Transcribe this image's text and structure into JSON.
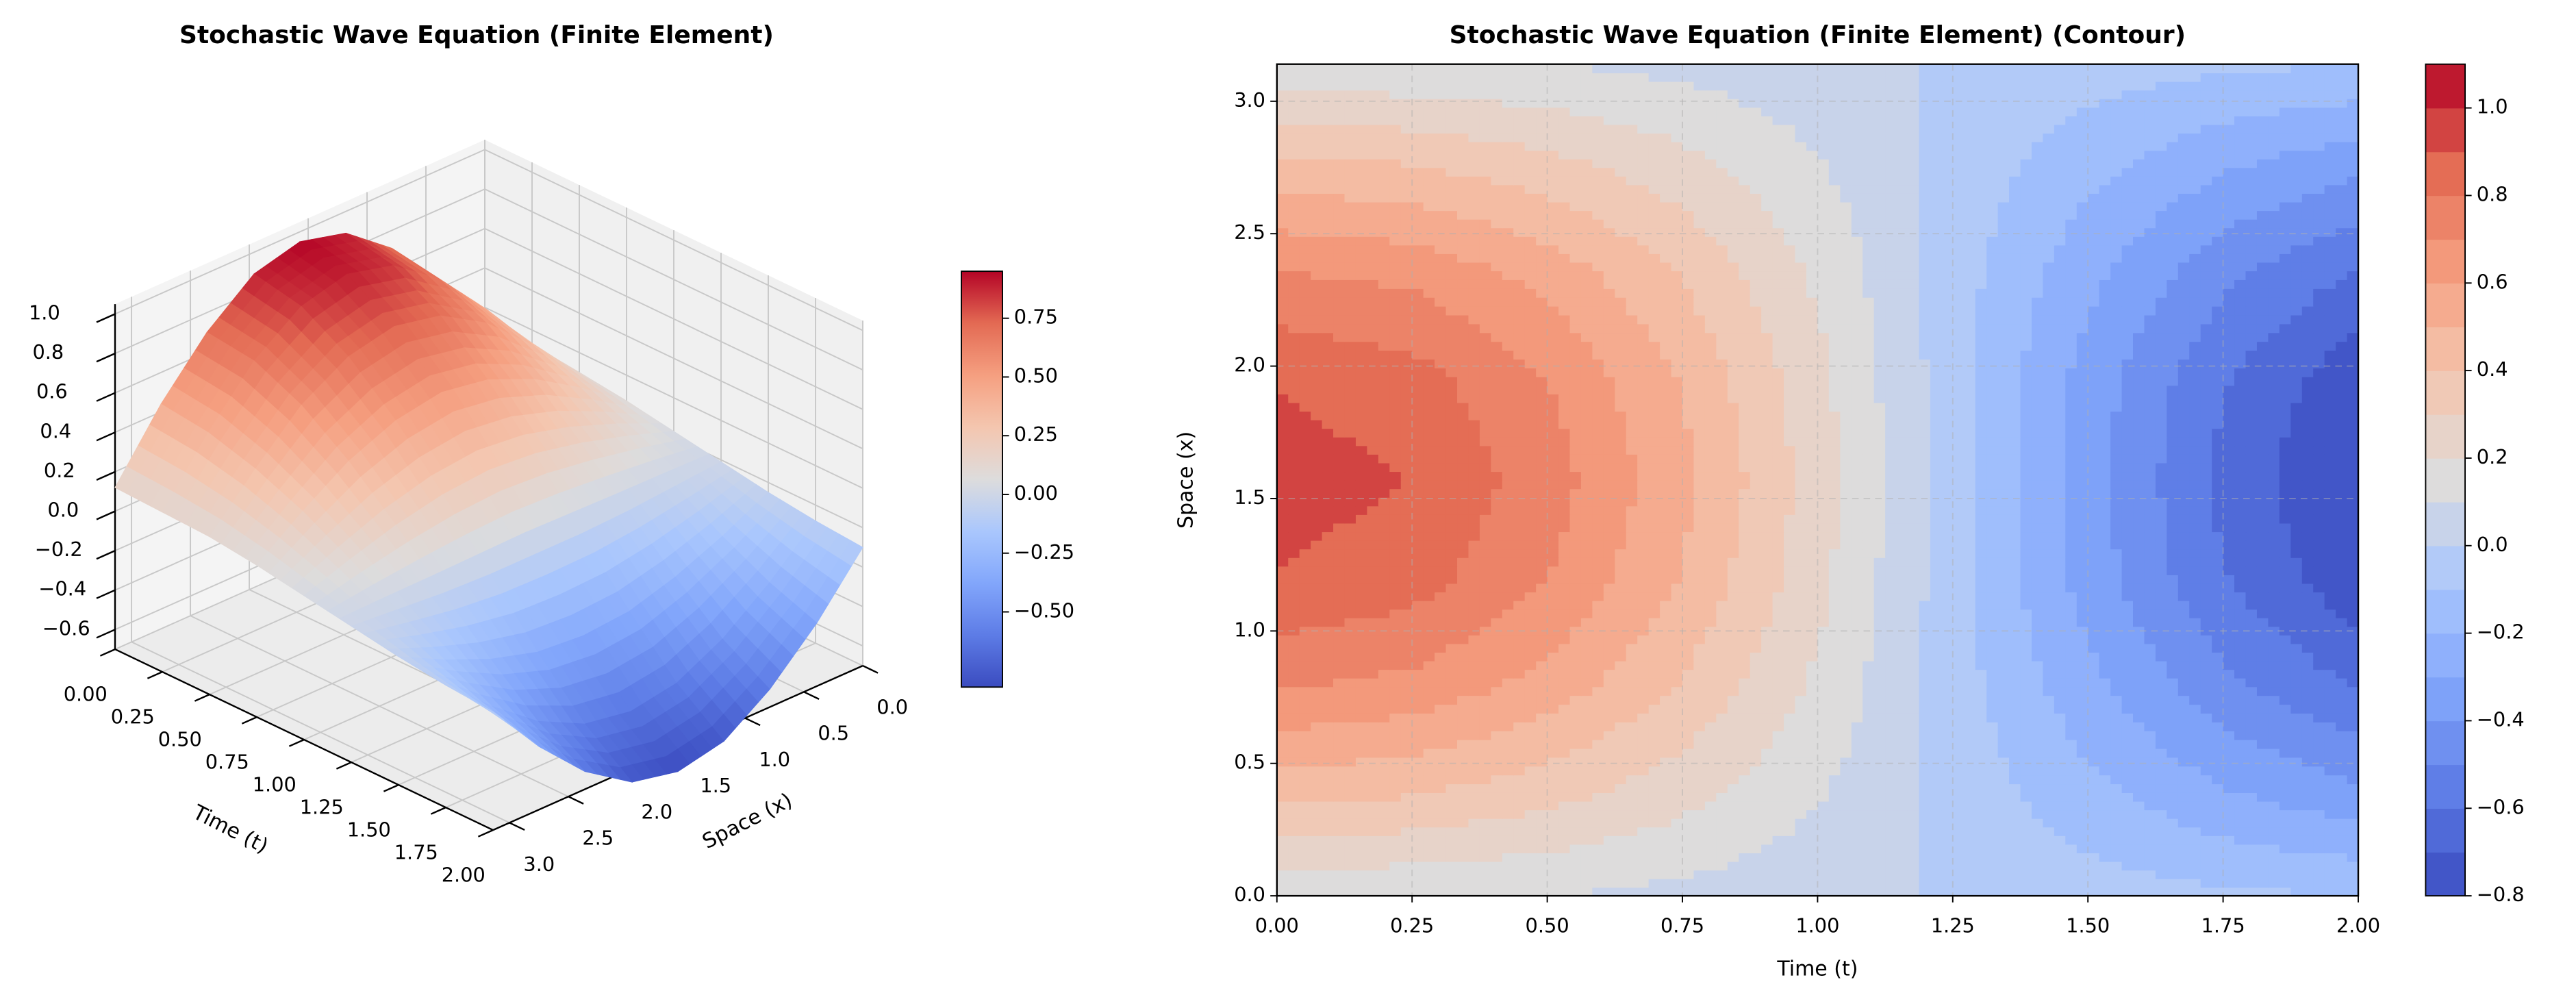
{
  "chart_data": [
    {
      "type": "surface",
      "title": "Stochastic Wave Equation (Finite Element)",
      "xlabel": "Time (t)",
      "ylabel": "Space (x)",
      "colormap": "coolwarm",
      "x": [
        0,
        0.25,
        0.5,
        0.75,
        1.0,
        1.25,
        1.5,
        1.75,
        2.0
      ],
      "y": [
        0,
        0.39,
        0.79,
        1.18,
        1.57,
        1.96,
        2.36,
        2.75,
        3.14
      ],
      "z": [
        [
          0.12,
          0.11,
          0.1,
          0.07,
          0.03,
          -0.01,
          -0.05,
          -0.08,
          -0.1
        ],
        [
          0.44,
          0.41,
          0.34,
          0.24,
          0.11,
          -0.03,
          -0.17,
          -0.29,
          -0.38
        ],
        [
          0.71,
          0.67,
          0.56,
          0.39,
          0.18,
          -0.05,
          -0.27,
          -0.47,
          -0.61
        ],
        [
          0.89,
          0.84,
          0.7,
          0.49,
          0.23,
          -0.06,
          -0.34,
          -0.59,
          -0.77
        ],
        [
          0.95,
          0.9,
          0.75,
          0.53,
          0.25,
          -0.06,
          -0.36,
          -0.63,
          -0.82
        ],
        [
          0.89,
          0.84,
          0.7,
          0.49,
          0.23,
          -0.06,
          -0.34,
          -0.59,
          -0.77
        ],
        [
          0.7,
          0.67,
          0.56,
          0.39,
          0.18,
          -0.05,
          -0.27,
          -0.47,
          -0.61
        ],
        [
          0.44,
          0.41,
          0.34,
          0.24,
          0.11,
          -0.03,
          -0.17,
          -0.29,
          -0.38
        ],
        [
          0.12,
          0.11,
          0.1,
          0.07,
          0.03,
          -0.01,
          -0.05,
          -0.08,
          -0.1
        ]
      ],
      "xlim": [
        0,
        2
      ],
      "ylim": [
        0,
        3.14
      ],
      "zlim": [
        -0.7,
        1.05
      ],
      "xticks": [
        {
          "value": 0,
          "label": "0.00"
        },
        {
          "value": 0.25,
          "label": "0.25"
        },
        {
          "value": 0.5,
          "label": "0.50"
        },
        {
          "value": 0.75,
          "label": "0.75"
        },
        {
          "value": 1,
          "label": "1.00"
        },
        {
          "value": 1.25,
          "label": "1.25"
        },
        {
          "value": 1.5,
          "label": "1.50"
        },
        {
          "value": 1.75,
          "label": "1.75"
        },
        {
          "value": 2,
          "label": "2.00"
        }
      ],
      "yticks": [
        {
          "value": 0,
          "label": "0.0"
        },
        0.5,
        {
          "value": 1,
          "label": "1.0"
        },
        1.5,
        {
          "value": 2,
          "label": "2.0"
        },
        2.5,
        {
          "value": 3,
          "label": "3.0"
        }
      ],
      "zticks": [
        {
          "value": -0.6,
          "label": "−0.6"
        },
        {
          "value": -0.4,
          "label": "−0.4"
        },
        {
          "value": -0.2,
          "label": "−0.2"
        },
        {
          "value": 0,
          "label": "0.0"
        },
        0.2,
        0.4,
        0.6,
        0.8,
        {
          "value": 1,
          "label": "1.0"
        }
      ],
      "colorbar_ticks": [
        {
          "value": -0.5,
          "label": "−0.50"
        },
        {
          "value": -0.25,
          "label": "−0.25"
        },
        {
          "value": 0,
          "label": "0.00"
        },
        0.25,
        {
          "value": 0.5,
          "label": "0.50"
        },
        0.75
      ]
    },
    {
      "type": "contour",
      "title": "Stochastic Wave Equation (Finite Element) (Contour)",
      "xlabel": "Time (t)",
      "ylabel": "Space (x)",
      "colormap": "coolwarm",
      "grid": true,
      "x": [
        0,
        0.25,
        0.5,
        0.75,
        1.0,
        1.25,
        1.5,
        1.75,
        2.0
      ],
      "y": [
        0,
        0.39,
        0.79,
        1.18,
        1.57,
        1.96,
        2.36,
        2.75,
        3.14
      ],
      "z": [
        [
          0.12,
          0.11,
          0.1,
          0.07,
          0.03,
          -0.01,
          -0.05,
          -0.08,
          -0.1
        ],
        [
          0.44,
          0.41,
          0.34,
          0.24,
          0.11,
          -0.03,
          -0.17,
          -0.29,
          -0.38
        ],
        [
          0.71,
          0.67,
          0.56,
          0.39,
          0.18,
          -0.05,
          -0.27,
          -0.47,
          -0.61
        ],
        [
          0.89,
          0.84,
          0.7,
          0.49,
          0.23,
          -0.06,
          -0.34,
          -0.59,
          -0.77
        ],
        [
          0.95,
          0.9,
          0.75,
          0.53,
          0.25,
          -0.06,
          -0.36,
          -0.63,
          -0.82
        ],
        [
          0.89,
          0.84,
          0.7,
          0.49,
          0.23,
          -0.06,
          -0.34,
          -0.59,
          -0.77
        ],
        [
          0.7,
          0.67,
          0.56,
          0.39,
          0.18,
          -0.05,
          -0.27,
          -0.47,
          -0.61
        ],
        [
          0.44,
          0.41,
          0.34,
          0.24,
          0.11,
          -0.03,
          -0.17,
          -0.29,
          -0.38
        ],
        [
          0.12,
          0.11,
          0.1,
          0.07,
          0.03,
          -0.01,
          -0.05,
          -0.08,
          -0.1
        ]
      ],
      "xlim": [
        0,
        2
      ],
      "ylim": [
        0,
        3.14
      ],
      "xticks": [
        {
          "value": 0,
          "label": "0.00"
        },
        {
          "value": 0.25,
          "label": "0.25"
        },
        {
          "value": 0.5,
          "label": "0.50"
        },
        {
          "value": 0.75,
          "label": "0.75"
        },
        {
          "value": 1,
          "label": "1.00"
        },
        {
          "value": 1.25,
          "label": "1.25"
        },
        {
          "value": 1.5,
          "label": "1.50"
        },
        {
          "value": 1.75,
          "label": "1.75"
        },
        {
          "value": 2,
          "label": "2.00"
        }
      ],
      "yticks": [
        {
          "value": 0,
          "label": "0.0"
        },
        0.5,
        {
          "value": 1,
          "label": "1.0"
        },
        1.5,
        {
          "value": 2,
          "label": "2.0"
        },
        2.5,
        {
          "value": 3,
          "label": "3.0"
        }
      ],
      "levels": [
        -0.8,
        -0.7,
        -0.6,
        -0.5,
        -0.4,
        -0.3,
        -0.2,
        -0.1,
        0,
        0.1,
        0.2,
        0.3,
        0.4,
        0.5,
        0.6,
        0.7,
        0.8,
        0.9,
        1.0,
        1.1
      ],
      "colorbar_ticks": [
        {
          "value": -0.8,
          "label": "−0.8"
        },
        {
          "value": -0.6,
          "label": "−0.6"
        },
        {
          "value": -0.4,
          "label": "−0.4"
        },
        {
          "value": -0.2,
          "label": "−0.2"
        },
        {
          "value": 0,
          "label": "0.0"
        },
        0.2,
        0.4,
        0.6,
        0.8,
        {
          "value": 1,
          "label": "1.0"
        }
      ]
    }
  ]
}
